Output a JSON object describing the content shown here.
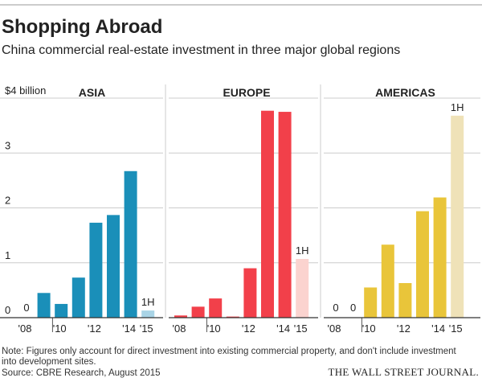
{
  "header": {
    "title": "Shopping Abroad",
    "subtitle": "China commercial real-estate investment in three major global regions"
  },
  "note": [
    "Note: Figures only account for direct investment into existing commercial property, and don't include investment",
    "into development sites."
  ],
  "source": "Source: CBRE Research, August 2015",
  "credit": "THE WALL STREET JOURNAL.",
  "chart_data": [
    {
      "type": "bar",
      "title": "ASIA",
      "categories": [
        "'08",
        null,
        "'10",
        null,
        "'12",
        null,
        "'14",
        "'15"
      ],
      "values": [
        0,
        0.45,
        0.25,
        0.73,
        1.73,
        1.87,
        2.67,
        0.13
      ],
      "value_labels": [
        "0",
        null,
        null,
        null,
        null,
        null,
        null,
        null
      ],
      "colors": [
        "#1a8fb9",
        "#1a8fb9",
        "#1a8fb9",
        "#1a8fb9",
        "#1a8fb9",
        "#1a8fb9",
        "#1a8fb9",
        "#a9d4e6"
      ],
      "annotation": {
        "text": "1H",
        "index": 7
      },
      "ylim": [
        0,
        4
      ],
      "yticks": [
        0,
        1,
        2,
        3,
        {
          "value": 4,
          "label": "$4 billion"
        }
      ],
      "show_ytick_labels": true,
      "grid": true
    },
    {
      "type": "bar",
      "title": "EUROPE",
      "categories": [
        "'08",
        null,
        "'10",
        null,
        "'12",
        null,
        "'14",
        "'15"
      ],
      "values": [
        0.04,
        0.2,
        0.35,
        0.02,
        0.9,
        3.77,
        3.75,
        1.07
      ],
      "value_labels": [
        null,
        null,
        null,
        null,
        null,
        null,
        null,
        null
      ],
      "colors": [
        "#f2404a",
        "#f2404a",
        "#f2404a",
        "#f2404a",
        "#f2404a",
        "#f2404a",
        "#f2404a",
        "#fbd3cf"
      ],
      "annotation": {
        "text": "1H",
        "index": 7
      },
      "ylim": [
        0,
        4
      ],
      "yticks": [
        0,
        1,
        2,
        3,
        4
      ],
      "show_ytick_labels": false,
      "grid": true
    },
    {
      "type": "bar",
      "title": "AMERICAS",
      "categories": [
        "'08",
        null,
        "'10",
        null,
        "'12",
        null,
        "'14",
        "'15"
      ],
      "values": [
        0,
        0,
        0.55,
        1.33,
        0.63,
        1.94,
        2.19,
        3.68
      ],
      "value_labels": [
        "0",
        "0",
        null,
        null,
        null,
        null,
        null,
        null
      ],
      "colors": [
        "#e9c53a",
        "#e9c53a",
        "#e9c53a",
        "#e9c53a",
        "#e9c53a",
        "#e9c53a",
        "#e9c53a",
        "#efe2b8"
      ],
      "annotation": {
        "text": "1H",
        "index": 7
      },
      "ylim": [
        0,
        4
      ],
      "yticks": [
        0,
        1,
        2,
        3,
        4
      ],
      "show_ytick_labels": false,
      "grid": true
    }
  ]
}
